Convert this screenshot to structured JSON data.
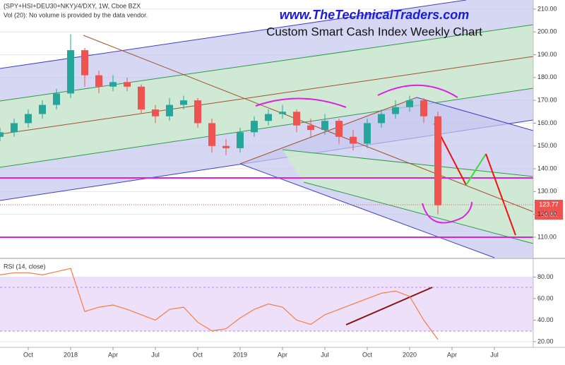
{
  "chart_data": [
    {
      "type": "candlestick",
      "header": "(SPY+HSI+DEU30+NKY)/4/DXY, 1W, Cboe BZX",
      "note": "Vol (20): No volume is provided by the data vendor.",
      "site_title": "www.TheTechnicalTraders.com",
      "title": "Custom Smart Cash Index Weekly Chart",
      "x": [
        -2,
        -1,
        0,
        1,
        2,
        3,
        4,
        5,
        6,
        7,
        8,
        9,
        10,
        11,
        12,
        13,
        14,
        15,
        16,
        17,
        18,
        19,
        20,
        21,
        22,
        23,
        24,
        25,
        26,
        27,
        28,
        29
      ],
      "open": [
        154,
        156,
        160,
        164,
        168,
        173,
        192,
        181,
        176,
        178,
        176,
        166,
        163,
        168,
        170,
        160,
        150,
        149,
        156,
        161,
        164,
        165,
        159,
        157,
        161,
        154,
        151,
        160,
        164,
        167,
        170,
        163
      ],
      "high": [
        158,
        162,
        166,
        170,
        175,
        199,
        193,
        183,
        181,
        180,
        177,
        168,
        171,
        172,
        171,
        162,
        153,
        158,
        163,
        166,
        168,
        166,
        162,
        164,
        162,
        157,
        162,
        166,
        170,
        172,
        171,
        165
      ],
      "low": [
        152,
        154,
        158,
        162,
        166,
        171,
        176,
        173,
        174,
        174,
        164,
        160,
        161,
        166,
        158,
        147,
        146,
        147,
        154,
        159,
        162,
        156,
        154,
        155,
        151,
        148,
        149,
        158,
        162,
        165,
        160,
        120
      ],
      "close": [
        156,
        160,
        164,
        168,
        173,
        192,
        181,
        176,
        178,
        176,
        166,
        163,
        168,
        170,
        160,
        150,
        149,
        156,
        161,
        164,
        165,
        159,
        157,
        161,
        154,
        151,
        160,
        164,
        167,
        170,
        163,
        124
      ],
      "up_color": "#26a69a",
      "down_color": "#ef5350",
      "last_price": 123.77,
      "countdown": "3d 8h",
      "xlim": [
        -2,
        35.75
      ],
      "xticks": [
        {
          "value": 0,
          "label": "Oct"
        },
        {
          "value": 3,
          "label": "2018"
        },
        {
          "value": 6,
          "label": "Apr"
        },
        {
          "value": 9,
          "label": "Jul"
        },
        {
          "value": 12,
          "label": "Oct"
        },
        {
          "value": 15,
          "label": "2019"
        },
        {
          "value": 18,
          "label": "Apr"
        },
        {
          "value": 21,
          "label": "Jul"
        },
        {
          "value": 24,
          "label": "Oct"
        },
        {
          "value": 27,
          "label": "2020"
        },
        {
          "value": 30,
          "label": "Apr"
        },
        {
          "value": 33,
          "label": "Jul"
        }
      ],
      "ylim": [
        101,
        214
      ],
      "yticks": [
        {
          "value": 110,
          "label": "110.00"
        },
        {
          "value": 120,
          "label": "120.00"
        },
        {
          "value": 130,
          "label": "130.00"
        },
        {
          "value": 140,
          "label": "140.00"
        },
        {
          "value": 150,
          "label": "150.00"
        },
        {
          "value": 160,
          "label": "160.00"
        },
        {
          "value": 170,
          "label": "170.00"
        },
        {
          "value": 180,
          "label": "180.00"
        },
        {
          "value": 190,
          "label": "190.00"
        },
        {
          "value": 200,
          "label": "200.00"
        },
        {
          "value": 210,
          "label": "210.00"
        }
      ]
    },
    {
      "type": "line",
      "title": "RSI (14, close)",
      "color": "#f57c45",
      "x": [
        -2,
        -1,
        0,
        1,
        2,
        3,
        4,
        5,
        6,
        7,
        8,
        9,
        10,
        11,
        12,
        13,
        14,
        15,
        16,
        17,
        18,
        19,
        20,
        21,
        22,
        23,
        24,
        25,
        26,
        27,
        28,
        29
      ],
      "values": [
        82,
        84,
        84,
        82,
        85,
        88,
        48,
        52,
        54,
        50,
        45,
        40,
        50,
        52,
        38,
        30,
        32,
        42,
        50,
        55,
        52,
        40,
        36,
        45,
        50,
        55,
        60,
        65,
        67,
        62,
        40,
        22
      ],
      "xlim": [
        -2,
        35.75
      ],
      "ylim": [
        16,
        96
      ],
      "yticks": [
        {
          "value": 20,
          "label": "20.00"
        },
        {
          "value": 40,
          "label": "40.00"
        },
        {
          "value": 60,
          "label": "60.00"
        },
        {
          "value": 80,
          "label": "80.00"
        }
      ]
    }
  ]
}
